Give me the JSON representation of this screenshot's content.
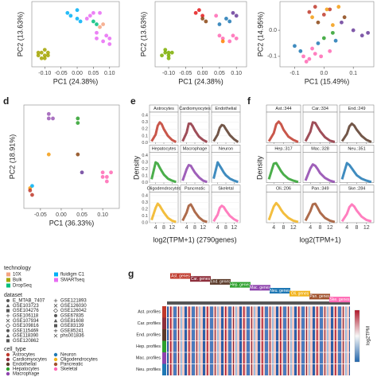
{
  "chart_data": [
    {
      "type": "scatter",
      "xlabel": "PC1 (24.38%)",
      "ylabel": "PC2 (13.63%)",
      "xlim": [
        -0.14,
        0.13
      ],
      "ylim": [
        -0.09,
        0.14
      ],
      "xticks": [
        {
          "value": -0.1,
          "label": "-0.10"
        },
        {
          "value": -0.05,
          "label": "-0.05"
        },
        {
          "value": 0,
          "label": "0.00"
        },
        {
          "value": 0.05,
          "label": "0.05"
        },
        {
          "value": 0.1,
          "label": "0.10"
        }
      ],
      "series": [
        {
          "color": "#a3a500",
          "x": [
            -0.12,
            -0.11,
            -0.1,
            -0.1,
            -0.09,
            -0.11,
            -0.1,
            -0.12,
            -0.09
          ],
          "y": [
            -0.05,
            -0.04,
            -0.05,
            -0.06,
            -0.04,
            -0.06,
            -0.03,
            -0.04,
            -0.05
          ]
        },
        {
          "color": "#00b0f6",
          "x": [
            -0.03,
            -0.02,
            0.0,
            0.0,
            0.01
          ],
          "y": [
            0.1,
            0.09,
            0.08,
            0.11,
            0.07
          ]
        },
        {
          "color": "#00bf7d",
          "x": [
            0.05,
            0.06
          ],
          "y": [
            0.07,
            0.06
          ]
        },
        {
          "color": "#e76bf3",
          "x": [
            0.04,
            0.05,
            0.06,
            0.08,
            0.09,
            0.1,
            0.1,
            0.07,
            0.03,
            0.06
          ],
          "y": [
            0.09,
            0.1,
            0.01,
            0.0,
            0.02,
            0.01,
            -0.01,
            0.1,
            0.08,
            0.03
          ]
        },
        {
          "color": "#f4a582",
          "x": [
            0.07,
            0.08
          ],
          "y": [
            0.05,
            0.06
          ]
        }
      ]
    },
    {
      "type": "scatter",
      "xlabel": "PC1 (24.38%)",
      "ylabel": "PC2 (13.63%)",
      "xlim": [
        -0.14,
        0.13
      ],
      "ylim": [
        -0.09,
        0.14
      ],
      "xticks": [
        {
          "value": -0.1,
          "label": "-0.10"
        },
        {
          "value": -0.05,
          "label": "-0.05"
        },
        {
          "value": 0,
          "label": "0.00"
        },
        {
          "value": 0.05,
          "label": "0.05"
        },
        {
          "value": 0.1,
          "label": "0.10"
        }
      ],
      "series": [
        {
          "color": "#7cae00",
          "x": [
            -0.12,
            -0.11,
            -0.1,
            -0.1,
            -0.09,
            -0.11,
            -0.1
          ],
          "y": [
            -0.05,
            -0.04,
            -0.05,
            -0.06,
            -0.04,
            -0.03,
            -0.04
          ]
        },
        {
          "color": "#e41a1c",
          "x": [
            -0.02,
            -0.01,
            0.0
          ],
          "y": [
            0.1,
            0.11,
            0.09
          ]
        },
        {
          "color": "#8b4513",
          "x": [
            0.0,
            0.01
          ],
          "y": [
            0.08,
            0.07
          ]
        },
        {
          "color": "#ff69b4",
          "x": [
            0.04,
            0.05,
            0.06,
            0.08,
            0.09,
            0.1
          ],
          "y": [
            0.09,
            0.02,
            0.01,
            0.0,
            0.02,
            0.01
          ]
        },
        {
          "color": "#1f78b4",
          "x": [
            0.05,
            0.07,
            0.08
          ],
          "y": [
            0.06,
            0.08,
            0.07
          ]
        },
        {
          "color": "#6a3d9a",
          "x": [
            0.09,
            0.1
          ],
          "y": [
            0.1,
            0.09
          ]
        },
        {
          "color": "#ff7f00",
          "x": [
            0.06
          ],
          "y": [
            0.0
          ]
        }
      ]
    },
    {
      "type": "scatter",
      "xlabel": "PC1 (15.49%)",
      "ylabel": "PC2 (14.95%)",
      "xlim": [
        -0.15,
        0.17
      ],
      "ylim": [
        -0.14,
        0.11
      ],
      "xticks": [
        {
          "value": -0.1,
          "label": "-0.1"
        },
        {
          "value": 0,
          "label": "0.0"
        },
        {
          "value": 0.1,
          "label": "0.1"
        }
      ],
      "yticks": [
        {
          "value": 0,
          "label": "0.0"
        },
        {
          "value": -0.1,
          "label": "-0.1"
        }
      ],
      "series": [
        {
          "color": "#c0392b",
          "x": [
            -0.05,
            -0.03,
            0.0,
            0.02
          ],
          "y": [
            0.07,
            0.09,
            0.06,
            0.08
          ]
        },
        {
          "color": "#f39c12",
          "x": [
            -0.04,
            0.01,
            0.03,
            0.05
          ],
          "y": [
            0.05,
            0.08,
            0.02,
            0.09
          ]
        },
        {
          "color": "#6a3d9a",
          "x": [
            0.06,
            0.1,
            0.13,
            0.15
          ],
          "y": [
            0.03,
            0.0,
            -0.02,
            -0.01
          ]
        },
        {
          "color": "#1f78b4",
          "x": [
            -0.1,
            -0.08,
            -0.02,
            0.04
          ],
          "y": [
            -0.06,
            -0.08,
            -0.05,
            -0.04
          ]
        },
        {
          "color": "#ff69b4",
          "x": [
            -0.07,
            -0.05,
            -0.03,
            -0.01,
            0.02,
            -0.06,
            -0.04
          ],
          "y": [
            -0.1,
            -0.11,
            -0.09,
            -0.1,
            -0.08,
            -0.12,
            -0.07
          ]
        },
        {
          "color": "#2ca02c",
          "x": [
            0.0,
            0.03
          ],
          "y": [
            -0.03,
            -0.01
          ]
        },
        {
          "color": "#8b4513",
          "x": [
            -0.02,
            0.07
          ],
          "y": [
            0.03,
            0.05
          ]
        }
      ]
    },
    {
      "type": "scatter",
      "panel": "d",
      "xlabel": "PC1 (36.33%)",
      "ylabel": "PC2 (18.91%)",
      "xlim": [
        -0.09,
        0.14
      ],
      "ylim": [
        -0.1,
        0.13
      ],
      "xticks": [
        {
          "value": -0.05,
          "label": "-0.05"
        },
        {
          "value": 0,
          "label": "0.00"
        },
        {
          "value": 0.05,
          "label": "0.05"
        },
        {
          "value": 0.1,
          "label": "0.10"
        }
      ],
      "series": [
        {
          "color": "#9b59b6",
          "x": [
            -0.03,
            -0.03,
            -0.02
          ],
          "y": [
            0.11,
            0.1,
            0.1
          ]
        },
        {
          "color": "#2ca02c",
          "x": [
            0.04,
            0.04
          ],
          "y": [
            0.1,
            0.09
          ]
        },
        {
          "color": "#f39c12",
          "x": [
            -0.03,
            -0.075
          ],
          "y": [
            0.02,
            -0.055
          ]
        },
        {
          "color": "#8b4513",
          "x": [
            0.04
          ],
          "y": [
            0.02
          ]
        },
        {
          "color": "#6a3d9a",
          "x": [
            0.05
          ],
          "y": [
            -0.02
          ]
        },
        {
          "color": "#ff69b4",
          "x": [
            0.1,
            0.11,
            0.1,
            0.12,
            0.11
          ],
          "y": [
            -0.02,
            -0.03,
            -0.03,
            -0.02,
            -0.04
          ]
        },
        {
          "color": "#c0392b",
          "x": [
            -0.075,
            -0.07
          ],
          "y": [
            -0.06,
            -0.07
          ]
        },
        {
          "color": "#00b0f6",
          "x": [
            -0.07
          ],
          "y": [
            -0.05
          ]
        }
      ]
    },
    {
      "type": "density",
      "panel": "e",
      "xlabel": "log2(TPM+1) (2790genes)",
      "ylabel": "Density",
      "xlim": [
        1,
        15
      ],
      "ylim": [
        0,
        0.45
      ],
      "xticks": [
        4,
        8,
        12
      ],
      "yticks": [
        {
          "value": 0,
          "label": "0.0"
        },
        {
          "value": 0.1,
          "label": "0.1"
        },
        {
          "value": 0.2,
          "label": "0.2"
        },
        {
          "value": 0.3,
          "label": "0.3"
        },
        {
          "value": 0.4,
          "label": "0.4"
        }
      ],
      "x": [
        2,
        4,
        5,
        6,
        7,
        8,
        10,
        12,
        14
      ],
      "facets": [
        {
          "title": "Astrocytes",
          "color": "#c0392b",
          "values": [
            0.02,
            0.12,
            0.25,
            0.3,
            0.27,
            0.2,
            0.1,
            0.04,
            0.01
          ]
        },
        {
          "title": "Cardiomyocytes",
          "color": "#8e2f3c",
          "values": [
            0.02,
            0.15,
            0.28,
            0.28,
            0.24,
            0.18,
            0.09,
            0.04,
            0.01
          ]
        },
        {
          "title": "Endothelial",
          "color": "#5b3a29",
          "values": [
            0.02,
            0.12,
            0.22,
            0.26,
            0.25,
            0.2,
            0.11,
            0.05,
            0.01
          ]
        },
        {
          "title": "Hepatocytes",
          "color": "#2ca02c",
          "values": [
            0.05,
            0.3,
            0.28,
            0.22,
            0.17,
            0.12,
            0.06,
            0.03,
            0.01
          ]
        },
        {
          "title": "Macrophage",
          "color": "#8e44ad",
          "values": [
            0.03,
            0.2,
            0.26,
            0.25,
            0.2,
            0.15,
            0.08,
            0.03,
            0.01
          ]
        },
        {
          "title": "Neuron",
          "color": "#1f78b4",
          "values": [
            0.06,
            0.3,
            0.25,
            0.2,
            0.15,
            0.11,
            0.06,
            0.03,
            0.01
          ]
        },
        {
          "title": "Oligodendrocytes",
          "color": "#f1b31c",
          "values": [
            0.04,
            0.22,
            0.28,
            0.25,
            0.2,
            0.15,
            0.07,
            0.03,
            0.01
          ]
        },
        {
          "title": "Pancreatic",
          "color": "#a0522d",
          "values": [
            0.03,
            0.15,
            0.25,
            0.27,
            0.22,
            0.16,
            0.08,
            0.03,
            0.01
          ]
        },
        {
          "title": "Skeletal",
          "color": "#ff69b4",
          "values": [
            0.02,
            0.12,
            0.22,
            0.25,
            0.23,
            0.18,
            0.1,
            0.05,
            0.02
          ]
        }
      ]
    },
    {
      "type": "density",
      "panel": "f",
      "xlabel": "log2(TPM+1)",
      "ylabel": "Density",
      "xlim": [
        1,
        15
      ],
      "ylim": [
        0,
        0.45
      ],
      "xticks": [
        4,
        8,
        12
      ],
      "x": [
        2,
        4,
        5,
        6,
        7,
        8,
        10,
        12,
        14
      ],
      "facets": [
        {
          "title": "Ast.:344",
          "color": "#c0392b",
          "values": [
            0.02,
            0.14,
            0.27,
            0.31,
            0.27,
            0.19,
            0.09,
            0.04,
            0.01
          ]
        },
        {
          "title": "Car.:334",
          "color": "#8e2f3c",
          "values": [
            0.02,
            0.16,
            0.3,
            0.29,
            0.23,
            0.17,
            0.08,
            0.03,
            0.01
          ]
        },
        {
          "title": "End.:249",
          "color": "#5b3a29",
          "values": [
            0.02,
            0.13,
            0.24,
            0.28,
            0.25,
            0.19,
            0.1,
            0.04,
            0.01
          ]
        },
        {
          "title": "Hep.:317",
          "color": "#2ca02c",
          "values": [
            0.05,
            0.28,
            0.29,
            0.23,
            0.17,
            0.12,
            0.06,
            0.03,
            0.01
          ]
        },
        {
          "title": "Mac.:328",
          "color": "#8e44ad",
          "values": [
            0.03,
            0.21,
            0.27,
            0.25,
            0.2,
            0.14,
            0.07,
            0.03,
            0.01
          ]
        },
        {
          "title": "Neu.:351",
          "color": "#1f78b4",
          "values": [
            0.05,
            0.29,
            0.26,
            0.21,
            0.16,
            0.11,
            0.06,
            0.03,
            0.01
          ]
        },
        {
          "title": "Oli.:206",
          "color": "#f1b31c",
          "values": [
            0.04,
            0.24,
            0.29,
            0.25,
            0.19,
            0.14,
            0.07,
            0.03,
            0.01
          ]
        },
        {
          "title": "Pan.:349",
          "color": "#a0522d",
          "values": [
            0.03,
            0.17,
            0.27,
            0.28,
            0.22,
            0.15,
            0.07,
            0.03,
            0.01
          ]
        },
        {
          "title": "Ske.:284",
          "color": "#ff69b4",
          "values": [
            0.02,
            0.13,
            0.23,
            0.27,
            0.24,
            0.18,
            0.09,
            0.04,
            0.02
          ]
        }
      ]
    }
  ],
  "legend": {
    "technology": {
      "title": "technology",
      "items": [
        {
          "name": "10X",
          "color": "#f4a582"
        },
        {
          "name": "Bulk",
          "color": "#a3a500"
        },
        {
          "name": "DropSeq",
          "color": "#00bf7d"
        },
        {
          "name": "fluidigm C1",
          "color": "#00b0f6"
        },
        {
          "name": "SMARTseq",
          "color": "#e76bf3"
        }
      ]
    },
    "dataset": {
      "title": "dataset",
      "items": [
        "E_MTAB_7407",
        "GSE103723",
        "GSE104276",
        "GSE106118",
        "GSE107934",
        "GSE109816",
        "GSE115469",
        "GSE118390",
        "GSE120862",
        "GSE121893",
        "GSE126030",
        "GSE126042",
        "GSE67835",
        "GSE81608",
        "GSE83139",
        "GSE85241",
        "phs001836"
      ]
    },
    "cell_type": {
      "title": "cell_type",
      "items": [
        {
          "name": "Astrocytes",
          "color": "#c0392b"
        },
        {
          "name": "Cardiomyocytes",
          "color": "#8e2f3c"
        },
        {
          "name": "Endothelial",
          "color": "#5b3a29"
        },
        {
          "name": "Hepatocytes",
          "color": "#2ca02c"
        },
        {
          "name": "Macrophage",
          "color": "#8e44ad"
        },
        {
          "name": "Neuron",
          "color": "#1f78b4"
        },
        {
          "name": "Oligodendrocytes",
          "color": "#f1b31c"
        },
        {
          "name": "Pancreatic",
          "color": "#a0522d"
        },
        {
          "name": "Skeletal",
          "color": "#ff69b4"
        }
      ]
    }
  },
  "heatmap": {
    "panel": "g",
    "colorbar_label": "log2TPM",
    "gene_labels": [
      "Ast. genes",
      "Car. genes",
      "End. genes",
      "Hep. genes",
      "Mac. genes",
      "Neu. genes",
      "Oli. genes",
      "Pan. genes",
      "Ske. genes"
    ],
    "row_labels": [
      "Ast. profiles",
      "Car. profiles",
      "End. profiles",
      "Hep. profiles",
      "Mac. profiles",
      "Neu. profiles"
    ]
  }
}
